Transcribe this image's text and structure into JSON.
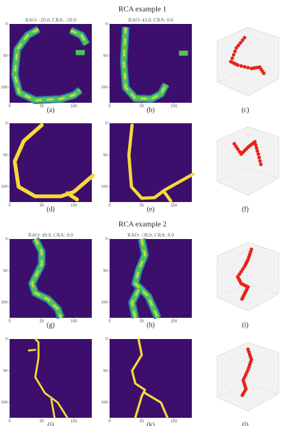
{
  "sections": [
    {
      "title": "RCA example 1",
      "rows": [
        {
          "panels": [
            {
              "title": "RAO: -20.0, CRA: -20.0",
              "label": "(a)"
            },
            {
              "title": "RAO: 43.0, CRA: 0.0",
              "label": "(b)"
            },
            {
              "label": "(c)"
            }
          ]
        },
        {
          "panels": [
            {
              "label": "(d)"
            },
            {
              "label": "(e)"
            },
            {
              "label": "(f)"
            }
          ]
        }
      ]
    },
    {
      "title": "RCA example 2",
      "rows": [
        {
          "panels": [
            {
              "title": "RAO: 49.0, CRA: 0.0",
              "label": "(g)"
            },
            {
              "title": "RAO: -38.0, CRA: 0.0",
              "label": "(h)"
            },
            {
              "label": "(i)"
            }
          ]
        },
        {
          "panels": [
            {
              "label": "(j)"
            },
            {
              "label": "(k)"
            },
            {
              "label": "(l)"
            }
          ]
        }
      ]
    }
  ],
  "image_axis": {
    "xticks": [
      0,
      50,
      100
    ],
    "yticks": [
      0,
      50,
      100
    ]
  }
}
